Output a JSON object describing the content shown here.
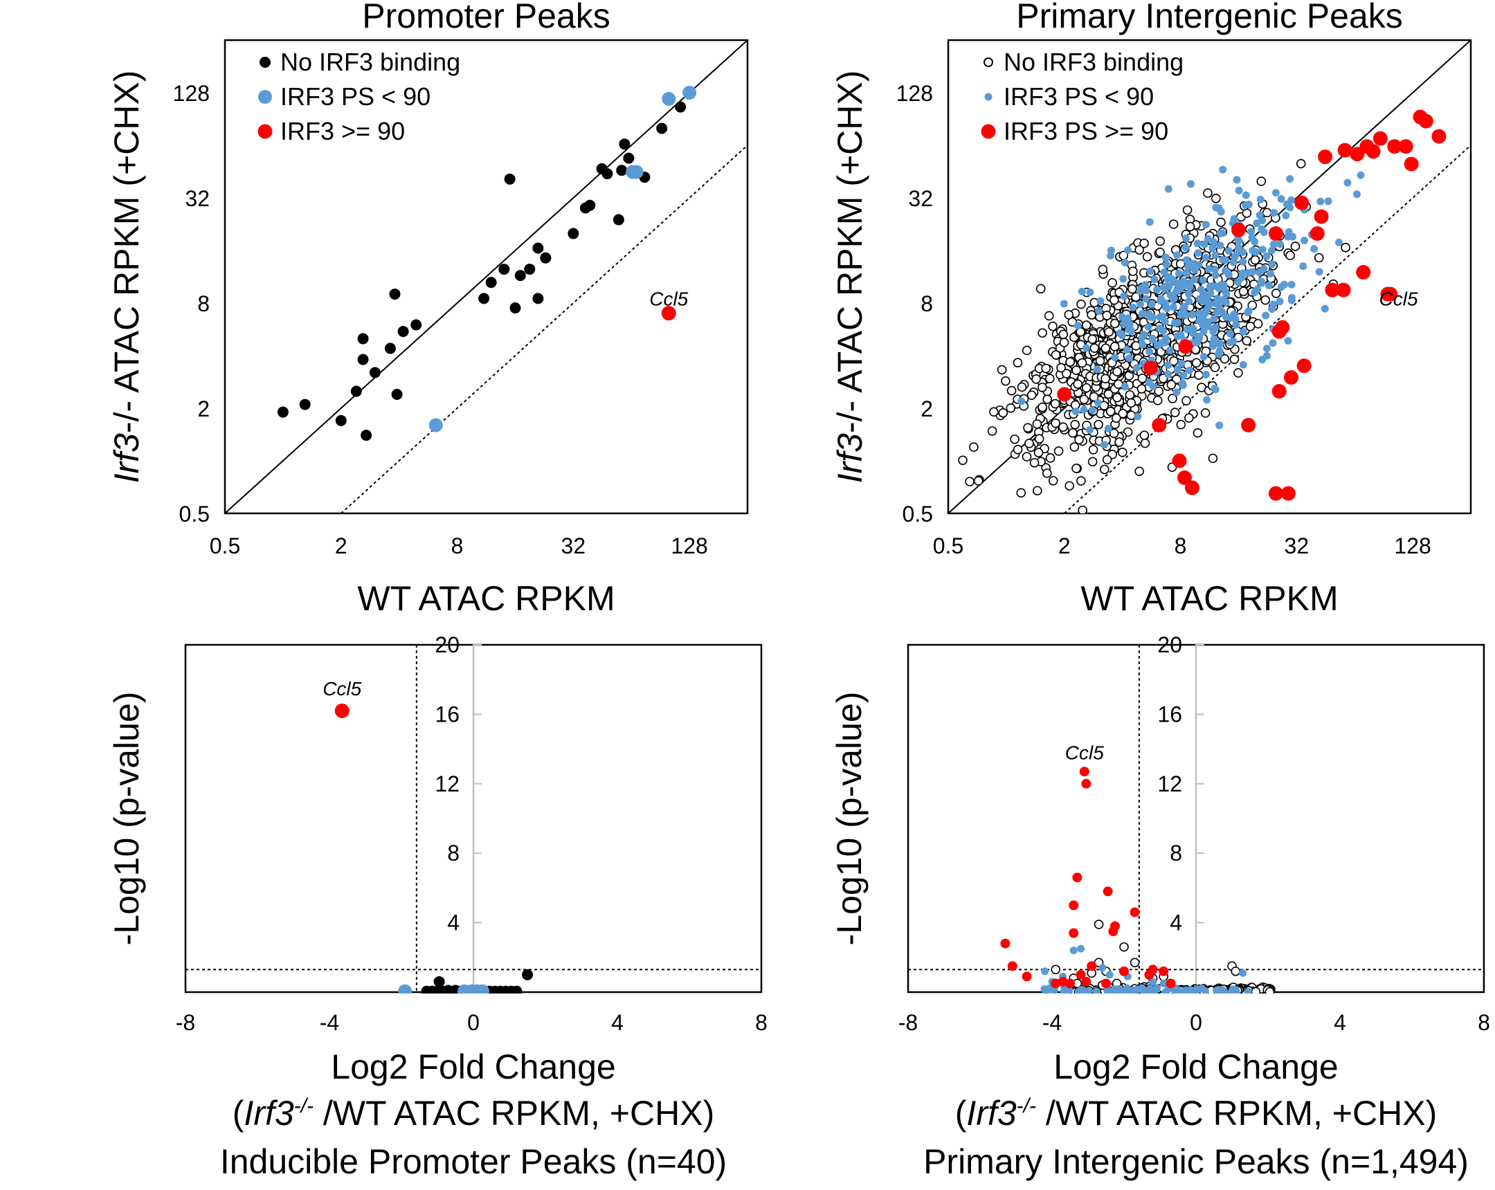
{
  "colors": {
    "none": "#000000",
    "low": "#5B9BD5",
    "high": "#FF0000",
    "grey": "#bfbfbf"
  },
  "chart_data": [
    {
      "type": "scatter",
      "id": "promoter-scatter",
      "scale": "log2",
      "title": "Promoter Peaks",
      "xlabel": "WT ATAC RPKM",
      "ylabel_italic": "Irf3",
      "ylabel_rest": "-/- ATAC RPKM (+CHX)",
      "xlim": [
        0.5,
        256
      ],
      "ylim": [
        0.5,
        256
      ],
      "xticks": [
        "0.5",
        "2",
        "8",
        "32",
        "128"
      ],
      "yticks": [
        "0.5",
        "2",
        "8",
        "32",
        "128"
      ],
      "tick_values": [
        0.5,
        2,
        8,
        32,
        128
      ],
      "legend": [
        "No IRF3 binding",
        "IRF3 PS < 90",
        "IRF3 >= 90"
      ],
      "annotation": {
        "text": "Ccl5",
        "x": 100,
        "y": 8.5
      },
      "series": [
        {
          "name": "No IRF3 binding",
          "style": "filled-black",
          "points": [
            [
              1.0,
              1.9
            ],
            [
              1.3,
              2.1
            ],
            [
              2.0,
              1.7
            ],
            [
              2.4,
              2.5
            ],
            [
              2.6,
              5.0
            ],
            [
              2.6,
              3.8
            ],
            [
              2.7,
              1.4
            ],
            [
              3.0,
              3.2
            ],
            [
              3.6,
              4.4
            ],
            [
              3.8,
              9.0
            ],
            [
              3.9,
              2.4
            ],
            [
              4.2,
              5.5
            ],
            [
              4.9,
              6.0
            ],
            [
              11,
              8.5
            ],
            [
              12,
              10.5
            ],
            [
              14,
              12.5
            ],
            [
              15,
              41
            ],
            [
              16,
              7.5
            ],
            [
              17,
              11.5
            ],
            [
              19,
              12.5
            ],
            [
              21,
              16.5
            ],
            [
              21,
              8.5
            ],
            [
              23,
              14.5
            ],
            [
              32,
              20
            ],
            [
              37,
              28
            ],
            [
              39,
              29
            ],
            [
              45,
              47
            ],
            [
              48,
              44
            ],
            [
              55,
              24
            ],
            [
              57,
              46
            ],
            [
              59,
              65
            ],
            [
              62,
              54
            ],
            [
              75,
              42
            ],
            [
              92,
              80
            ],
            [
              115,
              106
            ]
          ]
        },
        {
          "name": "IRF3 PS < 90",
          "style": "filled-blue",
          "points": [
            [
              6.2,
              1.6
            ],
            [
              65,
              45
            ],
            [
              68,
              45
            ],
            [
              100,
              118
            ],
            [
              128,
              128
            ]
          ]
        },
        {
          "name": "IRF3 >= 90",
          "style": "filled-red",
          "points": [
            [
              100,
              7.0
            ]
          ]
        }
      ]
    },
    {
      "type": "scatter",
      "id": "intergenic-scatter",
      "scale": "log2",
      "title": "Primary Intergenic Peaks",
      "xlabel": "WT ATAC RPKM",
      "ylabel_italic": "Irf3",
      "ylabel_rest": "-/- ATAC RPKM (+CHX)",
      "xlim": [
        0.5,
        256
      ],
      "ylim": [
        0.5,
        256
      ],
      "xticks": [
        "0.5",
        "2",
        "8",
        "32",
        "128"
      ],
      "yticks": [
        "0.5",
        "2",
        "8",
        "32",
        "128"
      ],
      "tick_values": [
        0.5,
        2,
        8,
        32,
        128
      ],
      "legend": [
        "No IRF3 binding",
        "IRF3 PS < 90",
        "IRF3 PS >= 90"
      ],
      "annotation": {
        "text": "Ccl5",
        "x": 108,
        "y": 8.5
      },
      "series": [
        {
          "name": "No IRF3 binding",
          "style": "open-black",
          "n_points": 1100,
          "cloud": {
            "center_log2": [
              2.4,
              2.3
            ],
            "sd_along": 1.35,
            "sd_across": 0.6
          }
        },
        {
          "name": "IRF3 PS < 90",
          "style": "filled-blue-small",
          "n_points": 330,
          "cloud": {
            "center_log2": [
              3.4,
              3.1
            ],
            "sd_along": 1.2,
            "sd_across": 0.65
          }
        },
        {
          "name": "IRF3 PS >= 90",
          "style": "filled-red",
          "points": [
            [
              2.0,
              2.4
            ],
            [
              6.2,
              1.6
            ],
            [
              5.6,
              3.4
            ],
            [
              8.5,
              4.5
            ],
            [
              7.9,
              1.0
            ],
            [
              8.4,
              0.8
            ],
            [
              9.2,
              0.7
            ],
            [
              16,
              21
            ],
            [
              18,
              1.6
            ],
            [
              25,
              0.65
            ],
            [
              29,
              0.65
            ],
            [
              26,
              2.5
            ],
            [
              30,
              3.0
            ],
            [
              35,
              3.5
            ],
            [
              26,
              5.5
            ],
            [
              27,
              5.8
            ],
            [
              25,
              20
            ],
            [
              34,
              30
            ],
            [
              41,
              20
            ],
            [
              43,
              25
            ],
            [
              45,
              55
            ],
            [
              49,
              9.5
            ],
            [
              56,
              9.5
            ],
            [
              57,
              60
            ],
            [
              66,
              57
            ],
            [
              71,
              12
            ],
            [
              74,
              63
            ],
            [
              80,
              59
            ],
            [
              87,
              70
            ],
            [
              95,
              9.0
            ],
            [
              98,
              9.0
            ],
            [
              103,
              63
            ],
            [
              118,
              63
            ],
            [
              126,
              50
            ],
            [
              140,
              93
            ],
            [
              150,
              88
            ],
            [
              175,
              72
            ]
          ]
        }
      ]
    },
    {
      "type": "scatter",
      "id": "promoter-volcano",
      "xlabel": "Log2 Fold Change",
      "caption_italic": "Irf3",
      "caption_sup": "-/-",
      "caption_rest": " /WT ATAC RPKM, +CHX)",
      "caption_subset": "Inducible Promoter Peaks (n=40)",
      "ylabel": "-Log10 (p-value)",
      "xlim": [
        -8,
        8
      ],
      "ylim": [
        0,
        20
      ],
      "xticks": [
        "-8",
        "-4",
        "0",
        "4",
        "8"
      ],
      "yticks": [
        "4",
        "8",
        "12",
        "16",
        "20"
      ],
      "threshold_x": -1.58,
      "threshold_y": 1.3,
      "annotation": {
        "text": "Ccl5",
        "x": -3.65,
        "y": 17.5
      },
      "series": [
        {
          "name": "No IRF3 binding",
          "style": "filled-black",
          "points": [
            [
              -1.3,
              0.05
            ],
            [
              -1.15,
              0.05
            ],
            [
              -1.0,
              0.05
            ],
            [
              -0.95,
              0.6
            ],
            [
              -0.85,
              0.05
            ],
            [
              -0.7,
              0.1
            ],
            [
              -0.65,
              0.05
            ],
            [
              -0.5,
              0.1
            ],
            [
              -0.4,
              0.05
            ],
            [
              -0.3,
              0.05
            ],
            [
              -0.2,
              0.05
            ],
            [
              -0.1,
              0.05
            ],
            [
              0.1,
              0.05
            ],
            [
              0.2,
              0.05
            ],
            [
              0.3,
              0.05
            ],
            [
              0.45,
              0.05
            ],
            [
              0.6,
              0.05
            ],
            [
              0.75,
              0.05
            ],
            [
              0.9,
              0.05
            ],
            [
              1.05,
              0.05
            ],
            [
              1.2,
              0.05
            ],
            [
              1.5,
              1.0
            ]
          ]
        },
        {
          "name": "IRF3 PS < 90",
          "style": "filled-blue",
          "points": [
            [
              -1.9,
              0.05
            ],
            [
              -0.25,
              0.05
            ],
            [
              -0.05,
              0.05
            ],
            [
              0.1,
              0.05
            ],
            [
              0.25,
              0.05
            ]
          ]
        },
        {
          "name": "IRF3 >= 90",
          "style": "filled-red",
          "points": [
            [
              -3.65,
              16.2
            ]
          ]
        }
      ]
    },
    {
      "type": "scatter",
      "id": "intergenic-volcano",
      "xlabel": "Log2 Fold Change",
      "caption_italic": "Irf3",
      "caption_sup": "-/-",
      "caption_rest": " /WT ATAC RPKM, +CHX)",
      "caption_subset": "Primary Intergenic Peaks (n=1,494)",
      "ylabel": "-Log10 (p-value)",
      "xlim": [
        -8,
        8
      ],
      "ylim": [
        0,
        20
      ],
      "xticks": [
        "-8",
        "-4",
        "0",
        "4",
        "8"
      ],
      "yticks": [
        "4",
        "8",
        "12",
        "16",
        "20"
      ],
      "threshold_x": -1.58,
      "threshold_y": 1.3,
      "annotation": {
        "text": "Ccl5",
        "x": -3.1,
        "y": 13.8
      },
      "series": [
        {
          "name": "No IRF3 binding",
          "style": "open-black",
          "n_points": 260,
          "cloud": {
            "x_range": [
              -3.5,
              2.1
            ]
          },
          "points": [
            [
              -2.7,
              1.7
            ],
            [
              -2.7,
              3.9
            ],
            [
              -2.0,
              2.6
            ],
            [
              -1.7,
              1.7
            ],
            [
              -1.3,
              1.0
            ],
            [
              -1.2,
              0.8
            ],
            [
              -0.9,
              0.9
            ],
            [
              1.0,
              1.5
            ],
            [
              1.1,
              1.2
            ],
            [
              -3.4,
              0.8
            ],
            [
              -3.3,
              0.5
            ],
            [
              -2.9,
              1.1
            ],
            [
              -2.5,
              1.2
            ],
            [
              -3.9,
              1.3
            ],
            [
              -2.6,
              0.4
            ],
            [
              -2.2,
              0.5
            ]
          ]
        },
        {
          "name": "IRF3 PS < 90",
          "style": "filled-blue-small",
          "n_points": 70,
          "cloud": {
            "x_range": [
              -4.3,
              1.5
            ]
          },
          "points": [
            [
              -4.2,
              1.2
            ],
            [
              -4.0,
              0.6
            ],
            [
              -3.7,
              0.9
            ],
            [
              -3.5,
              0.5
            ],
            [
              -3.4,
              2.4
            ],
            [
              -3.2,
              2.5
            ],
            [
              -2.6,
              1.4
            ],
            [
              -2.4,
              1.0
            ],
            [
              -2.0,
              1.2
            ],
            [
              -1.9,
              0.9
            ],
            [
              -1.2,
              0.6
            ],
            [
              -0.9,
              0.5
            ],
            [
              1.3,
              1.1
            ]
          ]
        },
        {
          "name": "IRF3 PS >= 90",
          "style": "filled-red-small",
          "points": [
            [
              -5.3,
              2.8
            ],
            [
              -5.1,
              1.5
            ],
            [
              -4.7,
              0.9
            ],
            [
              -3.9,
              0.5
            ],
            [
              -3.7,
              0.6
            ],
            [
              -3.5,
              0.5
            ],
            [
              -3.4,
              3.4
            ],
            [
              -3.4,
              5.0
            ],
            [
              -3.3,
              6.6
            ],
            [
              -3.2,
              1.0
            ],
            [
              -3.1,
              12.7
            ],
            [
              -3.05,
              12.0
            ],
            [
              -3.05,
              0.6
            ],
            [
              -2.9,
              1.5
            ],
            [
              -2.5,
              0.5
            ],
            [
              -2.45,
              5.8
            ],
            [
              -2.3,
              3.5
            ],
            [
              -2.25,
              3.8
            ],
            [
              -2.0,
              1.2
            ],
            [
              -1.7,
              4.6
            ],
            [
              -1.3,
              1.0
            ],
            [
              -1.2,
              1.3
            ],
            [
              -0.9,
              1.2
            ],
            [
              -0.7,
              0.5
            ]
          ]
        }
      ]
    }
  ]
}
